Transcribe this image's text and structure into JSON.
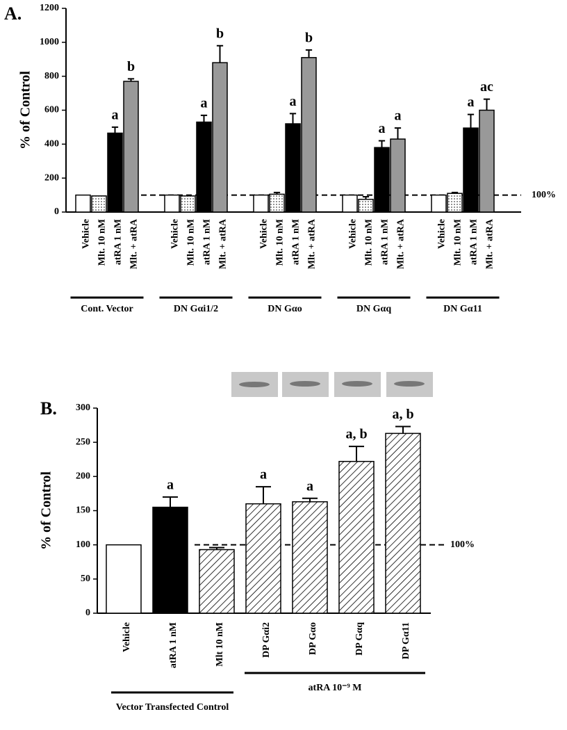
{
  "chart_data": [
    {
      "type": "bar",
      "panel": "A.",
      "ylabel": "% of Control",
      "categories": [
        "Cont. Vector",
        "DN Gαi1/2",
        "DN Gαo",
        "DN Gαq",
        "DN Gα11"
      ],
      "series": [
        {
          "name": "Vehicle",
          "color": "#ffffff",
          "values": [
            100,
            100,
            100,
            100,
            100
          ],
          "errors": [
            null,
            null,
            null,
            null,
            null
          ],
          "letters": [
            null,
            null,
            null,
            null,
            null
          ]
        },
        {
          "name": "Mlt. 10 nM",
          "color": "dots",
          "values": [
            95,
            95,
            105,
            75,
            110
          ],
          "errors": [
            null,
            null,
            10,
            15,
            5
          ],
          "letters": [
            null,
            null,
            null,
            null,
            null
          ]
        },
        {
          "name": "atRA 1 nM",
          "color": "#000000",
          "values": [
            465,
            530,
            520,
            380,
            495
          ],
          "errors": [
            35,
            40,
            60,
            40,
            80
          ],
          "letters": [
            "a",
            "a",
            "a",
            "a",
            "a"
          ]
        },
        {
          "name": "Mlt. + atRA",
          "color": "#999999",
          "values": [
            770,
            880,
            910,
            430,
            600
          ],
          "errors": [
            15,
            100,
            45,
            65,
            65
          ],
          "letters": [
            "b",
            "b",
            "b",
            "a",
            "ac"
          ]
        }
      ],
      "ylim": [
        0,
        1200
      ],
      "yticks": [
        0,
        200,
        400,
        600,
        800,
        1000,
        1200
      ],
      "reference": {
        "value": 100,
        "label": "100%"
      }
    },
    {
      "type": "bar",
      "panel": "B.",
      "ylabel": "% of Control",
      "categories": [
        "Vehicle",
        "atRA 1 nM",
        "Mlt 10 nM",
        "DP Gαi2",
        "DP Gαo",
        "DP Gαq",
        "DP Gα11"
      ],
      "values": [
        100,
        155,
        93,
        160,
        163,
        222,
        263
      ],
      "errors": [
        null,
        15,
        3,
        25,
        5,
        22,
        10
      ],
      "letters": [
        null,
        "a",
        null,
        "a",
        "a",
        "a, b",
        "a, b"
      ],
      "colors": [
        "#ffffff",
        "#000000",
        "hatch",
        "hatch",
        "hatch",
        "hatch",
        "hatch"
      ],
      "groups": [
        "Vector Transfected Control",
        "atRA 10⁻⁹ M"
      ],
      "ylim": [
        0,
        300
      ],
      "yticks": [
        0,
        50,
        100,
        150,
        200,
        250,
        300
      ],
      "reference": {
        "value": 100,
        "label": "100%"
      }
    }
  ]
}
